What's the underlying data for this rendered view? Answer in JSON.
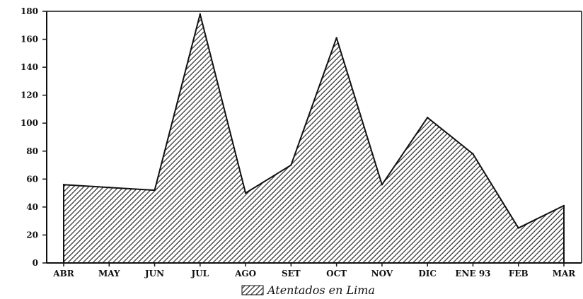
{
  "chart_data": {
    "type": "area",
    "categories": [
      "ABR",
      "MAY",
      "JUN",
      "JUL",
      "AGO",
      "SET",
      "OCT",
      "NOV",
      "DIC",
      "ENE 93",
      "FEB",
      "MAR"
    ],
    "series": [
      {
        "name": "Atentados en Lima",
        "values": [
          56,
          54,
          52,
          178,
          50,
          70,
          161,
          56,
          104,
          78,
          25,
          41
        ]
      }
    ],
    "yticks": [
      0,
      20,
      40,
      60,
      80,
      100,
      120,
      140,
      160,
      180
    ],
    "ylim": [
      0,
      180
    ],
    "grid": false,
    "legend": "bottom",
    "fill_pattern": "diagonal-hatch",
    "colors": {
      "line": "#111111",
      "hatch": "#1a1a1a",
      "background": "#ffffff"
    }
  }
}
